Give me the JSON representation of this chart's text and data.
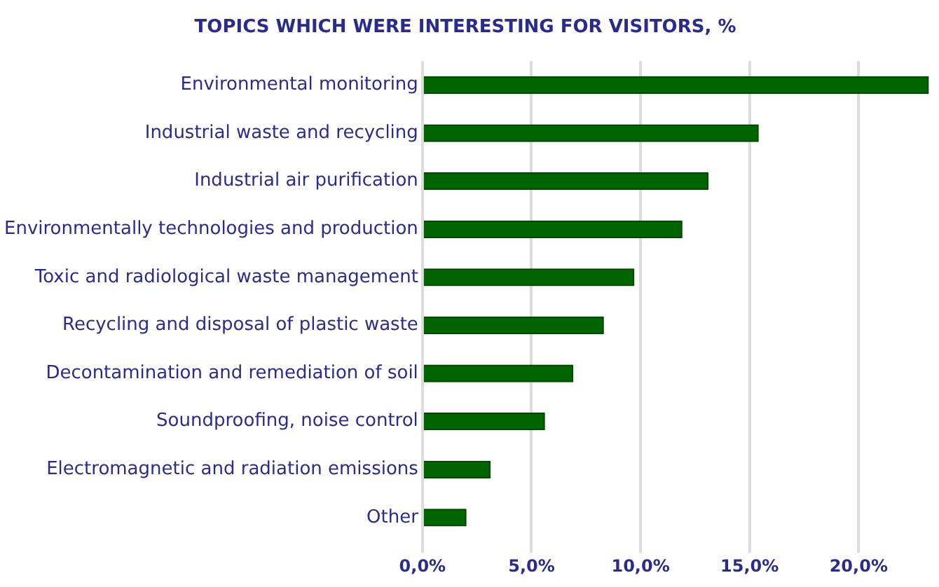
{
  "chart_data": {
    "type": "bar",
    "orientation": "horizontal",
    "title": "TOPICS WHICH WERE INTERESTING FOR VISITORS, %",
    "categories": [
      "Environmental monitoring",
      "Industrial waste and recycling",
      "Industrial air purification",
      "Environmentally technologies and production",
      "Toxic and radiological waste management",
      "Recycling and disposal of plastic waste",
      "Decontamination and remediation of soil",
      "Soundproofing, noise control",
      "Electromagnetic and radiation emissions",
      "Other"
    ],
    "values": [
      23.2,
      15.4,
      13.1,
      11.9,
      9.7,
      8.3,
      6.9,
      5.6,
      3.1,
      2.0
    ],
    "color": "#006400",
    "xlim": [
      0,
      23.3
    ],
    "xticks": [
      {
        "value": 0,
        "label": "0,0%"
      },
      {
        "value": 5,
        "label": "5,0%"
      },
      {
        "value": 10,
        "label": "10,0%"
      },
      {
        "value": 15,
        "label": "15,0%"
      },
      {
        "value": 20,
        "label": "20,0%"
      }
    ],
    "grid": "x",
    "legend": false
  }
}
